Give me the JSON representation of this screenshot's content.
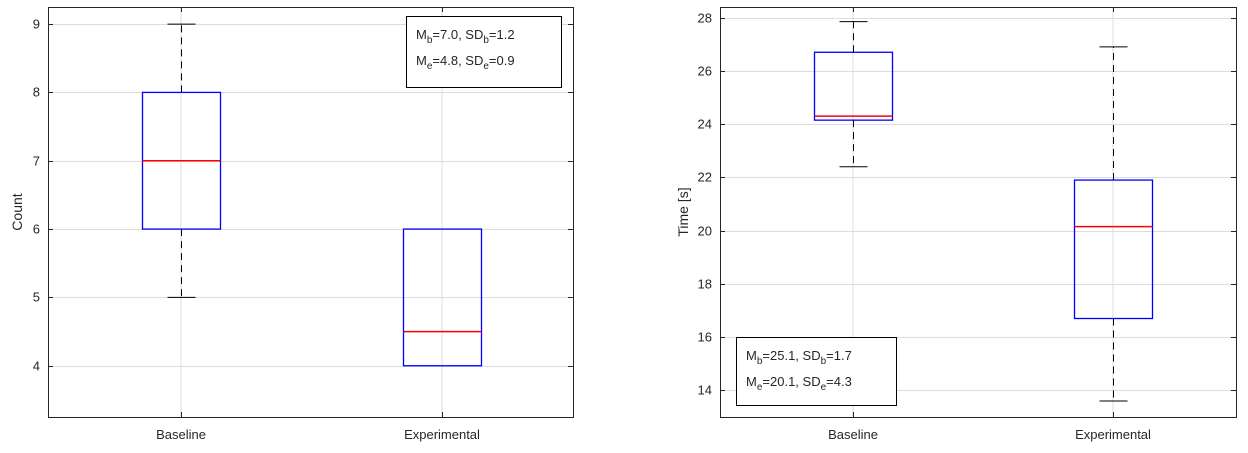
{
  "colors": {
    "box": "#0000ff",
    "median": "#ff0000",
    "whisker": "#000000",
    "grid": "#dcdcdc",
    "axis": "#262626"
  },
  "chart_data": [
    {
      "type": "box",
      "categories": [
        "Baseline",
        "Experimental"
      ],
      "ylabel": "Count",
      "ylim": [
        3.25,
        9.25
      ],
      "yticks": [
        "4",
        "5",
        "6",
        "7",
        "8",
        "9"
      ],
      "grid": true,
      "boxes": [
        {
          "category": "Baseline",
          "whisker_low": 5,
          "q1": 6,
          "median": 7,
          "q3": 8,
          "whisker_high": 9
        },
        {
          "category": "Experimental",
          "whisker_low": 4,
          "q1": 4,
          "median": 4.5,
          "q3": 6,
          "whisker_high": 6
        }
      ],
      "annotation": {
        "placement": "top-right",
        "lines": [
          {
            "parts": [
              {
                "t": "M"
              },
              {
                "t": "b",
                "sub": true
              },
              {
                "t": "=7.0, SD"
              },
              {
                "t": "b",
                "sub": true
              },
              {
                "t": "=1.2"
              }
            ]
          },
          {
            "parts": [
              {
                "t": "M"
              },
              {
                "t": "e",
                "sub": true
              },
              {
                "t": "=4.8, SD"
              },
              {
                "t": "e",
                "sub": true
              },
              {
                "t": "=0.9"
              }
            ]
          }
        ]
      }
    },
    {
      "type": "box",
      "categories": [
        "Baseline",
        "Experimental"
      ],
      "ylabel": "Time [s]",
      "ylim": [
        13,
        28.4
      ],
      "yticks": [
        "14",
        "16",
        "18",
        "20",
        "22",
        "24",
        "26",
        "28"
      ],
      "grid": true,
      "boxes": [
        {
          "category": "Baseline",
          "whisker_low": 22.4,
          "q1": 24.15,
          "median": 24.3,
          "q3": 26.7,
          "whisker_high": 27.85
        },
        {
          "category": "Experimental",
          "whisker_low": 13.6,
          "q1": 16.7,
          "median": 20.15,
          "q3": 21.9,
          "whisker_high": 26.9
        }
      ],
      "annotation": {
        "placement": "bottom-left",
        "lines": [
          {
            "parts": [
              {
                "t": "M"
              },
              {
                "t": "b",
                "sub": true
              },
              {
                "t": "=25.1, SD"
              },
              {
                "t": "b",
                "sub": true
              },
              {
                "t": "=1.7"
              }
            ]
          },
          {
            "parts": [
              {
                "t": "M"
              },
              {
                "t": "e",
                "sub": true
              },
              {
                "t": "=20.1, SD"
              },
              {
                "t": "e",
                "sub": true
              },
              {
                "t": "=4.3"
              }
            ]
          }
        ]
      }
    }
  ]
}
